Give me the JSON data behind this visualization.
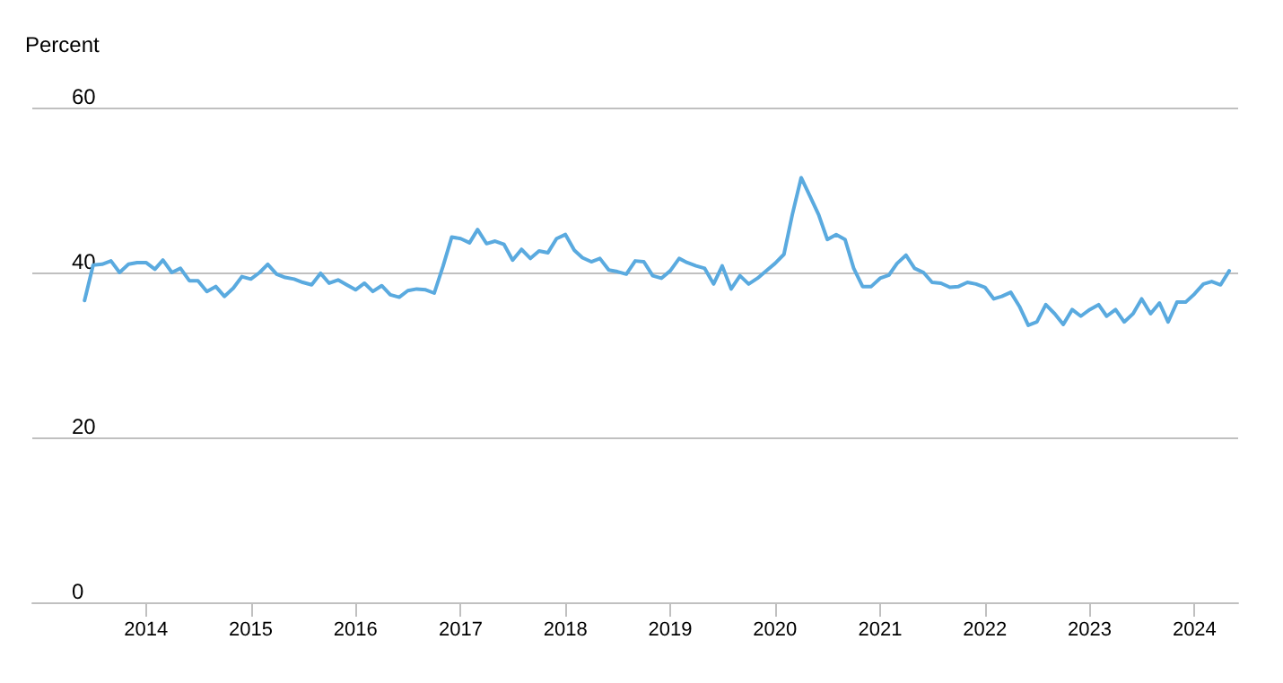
{
  "chart_data": {
    "type": "line",
    "ylabel": "Percent",
    "x": [
      "2013-06",
      "2013-07",
      "2013-08",
      "2013-09",
      "2013-10",
      "2013-11",
      "2013-12",
      "2014-01",
      "2014-02",
      "2014-03",
      "2014-04",
      "2014-05",
      "2014-06",
      "2014-07",
      "2014-08",
      "2014-09",
      "2014-10",
      "2014-11",
      "2014-12",
      "2015-01",
      "2015-02",
      "2015-03",
      "2015-04",
      "2015-05",
      "2015-06",
      "2015-07",
      "2015-08",
      "2015-09",
      "2015-10",
      "2015-11",
      "2015-12",
      "2016-01",
      "2016-02",
      "2016-03",
      "2016-04",
      "2016-05",
      "2016-06",
      "2016-07",
      "2016-08",
      "2016-09",
      "2016-10",
      "2016-11",
      "2016-12",
      "2017-01",
      "2017-02",
      "2017-03",
      "2017-04",
      "2017-05",
      "2017-06",
      "2017-07",
      "2017-08",
      "2017-09",
      "2017-10",
      "2017-11",
      "2017-12",
      "2018-01",
      "2018-02",
      "2018-03",
      "2018-04",
      "2018-05",
      "2018-06",
      "2018-07",
      "2018-08",
      "2018-09",
      "2018-10",
      "2018-11",
      "2018-12",
      "2019-01",
      "2019-02",
      "2019-03",
      "2019-04",
      "2019-05",
      "2019-06",
      "2019-07",
      "2019-08",
      "2019-09",
      "2019-10",
      "2019-11",
      "2019-12",
      "2020-01",
      "2020-02",
      "2020-03",
      "2020-04",
      "2020-05",
      "2020-06",
      "2020-07",
      "2020-08",
      "2020-09",
      "2020-10",
      "2020-11",
      "2020-12",
      "2021-01",
      "2021-02",
      "2021-03",
      "2021-04",
      "2021-05",
      "2021-06",
      "2021-07",
      "2021-08",
      "2021-09",
      "2021-10",
      "2021-11",
      "2021-12",
      "2022-01",
      "2022-02",
      "2022-03",
      "2022-04",
      "2022-05",
      "2022-06",
      "2022-07",
      "2022-08",
      "2022-09",
      "2022-10",
      "2022-11",
      "2022-12",
      "2023-01",
      "2023-02",
      "2023-03",
      "2023-04",
      "2023-05",
      "2023-06",
      "2023-07",
      "2023-08",
      "2023-09",
      "2023-10",
      "2023-11",
      "2023-12",
      "2024-01",
      "2024-02",
      "2024-03",
      "2024-04",
      "2024-05"
    ],
    "series": [
      {
        "color": "#5aaadf",
        "values": [
          36.6,
          40.9,
          41.0,
          41.4,
          40.0,
          41.0,
          41.2,
          41.2,
          40.4,
          41.5,
          40.0,
          40.5,
          39.0,
          39.0,
          37.7,
          38.3,
          37.1,
          38.1,
          39.5,
          39.2,
          40.0,
          41.0,
          39.8,
          39.4,
          39.2,
          38.8,
          38.5,
          39.9,
          38.7,
          39.1,
          38.5,
          37.9,
          38.7,
          37.7,
          38.4,
          37.3,
          37.0,
          37.8,
          38.0,
          37.9,
          37.5,
          40.8,
          44.3,
          44.1,
          43.6,
          45.2,
          43.5,
          43.8,
          43.4,
          41.5,
          42.8,
          41.7,
          42.6,
          42.4,
          44.1,
          44.6,
          42.7,
          41.8,
          41.3,
          41.7,
          40.3,
          40.1,
          39.8,
          41.4,
          41.3,
          39.6,
          39.3,
          40.2,
          41.7,
          41.2,
          40.8,
          40.5,
          38.6,
          40.8,
          38.0,
          39.6,
          38.6,
          39.3,
          40.2,
          41.1,
          42.2,
          47.0,
          51.5,
          49.3,
          47.0,
          44.0,
          44.6,
          44.0,
          40.5,
          38.3,
          38.3,
          39.3,
          39.7,
          41.1,
          42.1,
          40.5,
          40.0,
          38.8,
          38.7,
          38.2,
          38.3,
          38.8,
          38.6,
          38.2,
          36.8,
          37.1,
          37.6,
          35.9,
          33.6,
          34.0,
          36.1,
          35.0,
          33.7,
          35.5,
          34.7,
          35.5,
          36.1,
          34.7,
          35.5,
          34.0,
          35.0,
          36.8,
          35.0,
          36.3,
          34.0,
          36.4,
          36.4,
          37.4,
          38.6,
          38.9,
          38.5,
          40.2
        ]
      }
    ],
    "xlim": [
      "2012-12",
      "2024-06"
    ],
    "xticks": [
      "2014",
      "2015",
      "2016",
      "2017",
      "2018",
      "2019",
      "2020",
      "2021",
      "2022",
      "2023",
      "2024"
    ],
    "ylim": [
      0,
      60
    ],
    "yticks": [
      0,
      20,
      40,
      60
    ],
    "grid": "y",
    "marker": "none",
    "line_style": "solid"
  }
}
